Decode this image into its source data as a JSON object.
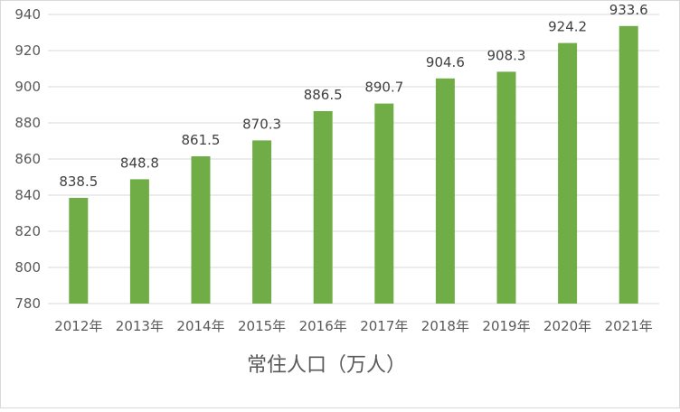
{
  "chart_data": {
    "type": "bar",
    "categories": [
      "2012年",
      "2013年",
      "2014年",
      "2015年",
      "2016年",
      "2017年",
      "2018年",
      "2019年",
      "2020年",
      "2021年"
    ],
    "values": [
      838.5,
      848.8,
      861.5,
      870.3,
      886.5,
      890.7,
      904.6,
      908.3,
      924.2,
      933.6
    ],
    "xlabel": "常住人口（万人）",
    "ylabel": "",
    "title": "",
    "ylim": [
      780,
      940
    ],
    "yticks": [
      780,
      800,
      820,
      840,
      860,
      880,
      900,
      920,
      940
    ],
    "grid": true,
    "legend": "none",
    "bar_color": "#70ad47",
    "grid_color": "#d9d9d9"
  }
}
